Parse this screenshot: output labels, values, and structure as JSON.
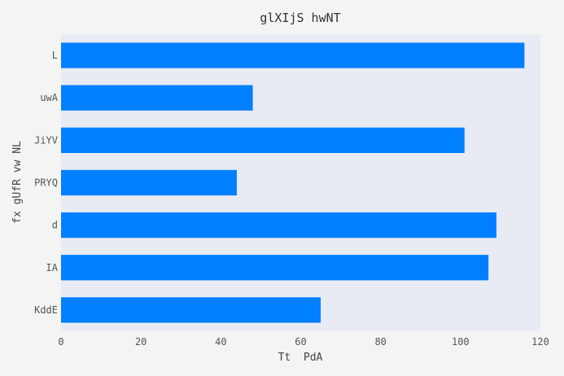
{
  "chart_data": {
    "type": "bar",
    "orientation": "horizontal",
    "title": "glXIjS hwNT",
    "xlabel": "Tt  PdA",
    "ylabel": "fx gUfR vw NL",
    "categories": [
      "L",
      "uwA",
      "JiYV",
      "PRYQ",
      "d",
      "IA",
      "KddE"
    ],
    "values": [
      116,
      48,
      101,
      44,
      109,
      107,
      65
    ],
    "xlim": [
      0,
      120
    ],
    "xticks": [
      0,
      20,
      40,
      60,
      80,
      100,
      120
    ],
    "grid": false,
    "legend": "none"
  },
  "colors": {
    "background": "#f4f4f4",
    "plot_area": "#e8eaf4",
    "bar": "#0080ff"
  }
}
